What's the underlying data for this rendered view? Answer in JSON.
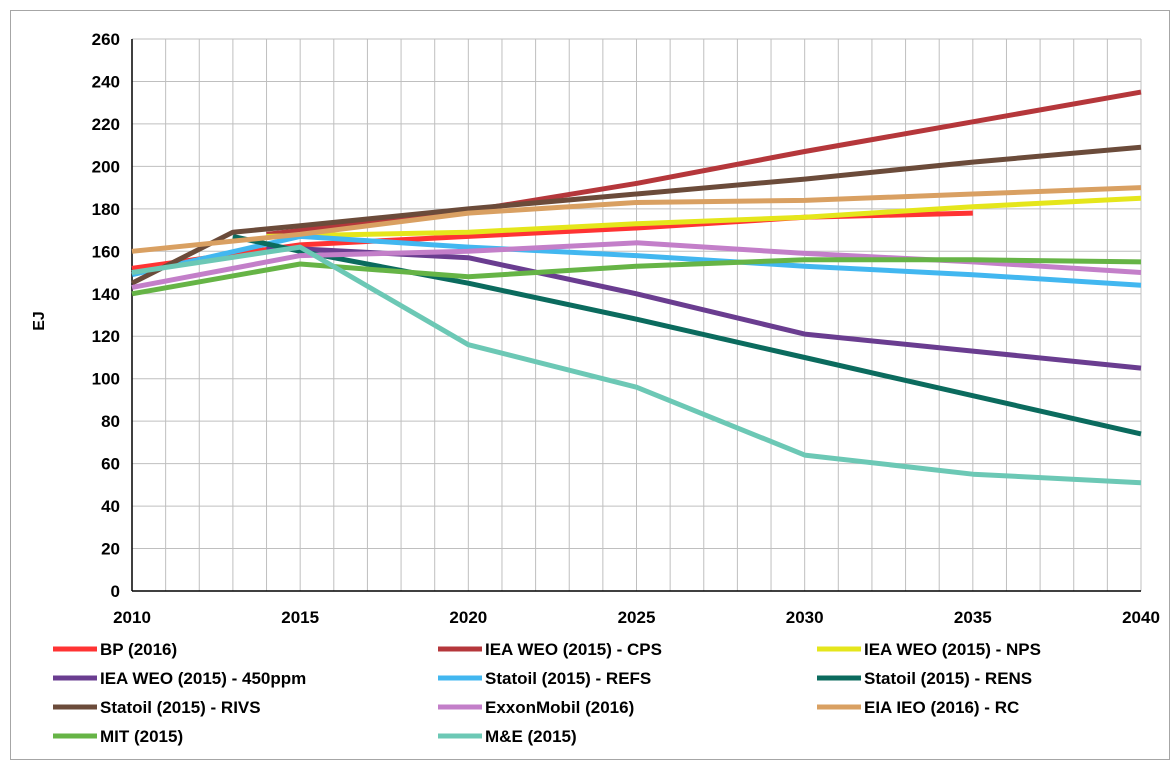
{
  "chart_data": {
    "type": "line",
    "ylabel": "EJ",
    "xlabel": "",
    "xlim": [
      2010,
      2040
    ],
    "ylim": [
      0,
      260
    ],
    "x_ticks": [
      2010,
      2015,
      2020,
      2025,
      2030,
      2035,
      2040
    ],
    "y_ticks": [
      0,
      20,
      40,
      60,
      80,
      100,
      120,
      140,
      160,
      180,
      200,
      220,
      240,
      260
    ],
    "grid": true,
    "legend_position": "bottom",
    "series": [
      {
        "name": "BP (2016)",
        "color": "#ff3333",
        "x": [
          2010,
          2015,
          2020,
          2025,
          2030,
          2035
        ],
        "y": [
          152,
          163,
          167,
          171,
          176,
          178
        ]
      },
      {
        "name": "IEA WEO (2015) - CPS",
        "color": "#b5373b",
        "x": [
          2014,
          2020,
          2025,
          2030,
          2035,
          2040
        ],
        "y": [
          168,
          179,
          192,
          207,
          221,
          235
        ]
      },
      {
        "name": "IEA WEO (2015) - NPS",
        "color": "#e5e61b",
        "x": [
          2014,
          2020,
          2025,
          2030,
          2035,
          2040
        ],
        "y": [
          167,
          169,
          173,
          176,
          181,
          185
        ]
      },
      {
        "name": "IEA WEO (2015) - 450ppm",
        "color": "#6a3d90",
        "x": [
          2014,
          2020,
          2025,
          2030,
          2035,
          2040
        ],
        "y": [
          162,
          157,
          140,
          121,
          113,
          105
        ]
      },
      {
        "name": "Statoil (2015) - REFS",
        "color": "#42b7f0",
        "x": [
          2010,
          2015,
          2020,
          2025,
          2030,
          2035,
          2040
        ],
        "y": [
          149,
          167,
          162,
          158,
          153,
          149,
          144
        ]
      },
      {
        "name": "Statoil (2015) - RENS",
        "color": "#0b6b5e",
        "x": [
          2013,
          2015,
          2020,
          2025,
          2030,
          2035,
          2040
        ],
        "y": [
          167,
          160,
          145,
          128,
          110,
          92,
          74
        ]
      },
      {
        "name": "Statoil (2015) - RIVS",
        "color": "#6b4b3a",
        "x": [
          2010,
          2013,
          2015,
          2020,
          2025,
          2030,
          2035,
          2040
        ],
        "y": [
          145,
          169,
          172,
          180,
          187,
          194,
          202,
          209
        ]
      },
      {
        "name": "ExxonMobil (2016)",
        "color": "#c37fc9",
        "x": [
          2010,
          2015,
          2020,
          2025,
          2030,
          2035,
          2040
        ],
        "y": [
          143,
          158,
          160,
          164,
          159,
          155,
          150
        ]
      },
      {
        "name": "EIA IEO (2016) - RC",
        "color": "#d9a062",
        "x": [
          2010,
          2015,
          2020,
          2025,
          2030,
          2035,
          2040
        ],
        "y": [
          160,
          168,
          178,
          183,
          184,
          187,
          190
        ]
      },
      {
        "name": "MIT (2015)",
        "color": "#66b446",
        "x": [
          2010,
          2015,
          2020,
          2025,
          2030,
          2035,
          2040
        ],
        "y": [
          140,
          154,
          148,
          153,
          156,
          156,
          155
        ]
      },
      {
        "name": "M&E (2015)",
        "color": "#6cc8b5",
        "x": [
          2010,
          2015,
          2020,
          2025,
          2030,
          2035,
          2040
        ],
        "y": [
          150,
          162,
          116,
          96,
          64,
          55,
          51
        ]
      }
    ]
  }
}
